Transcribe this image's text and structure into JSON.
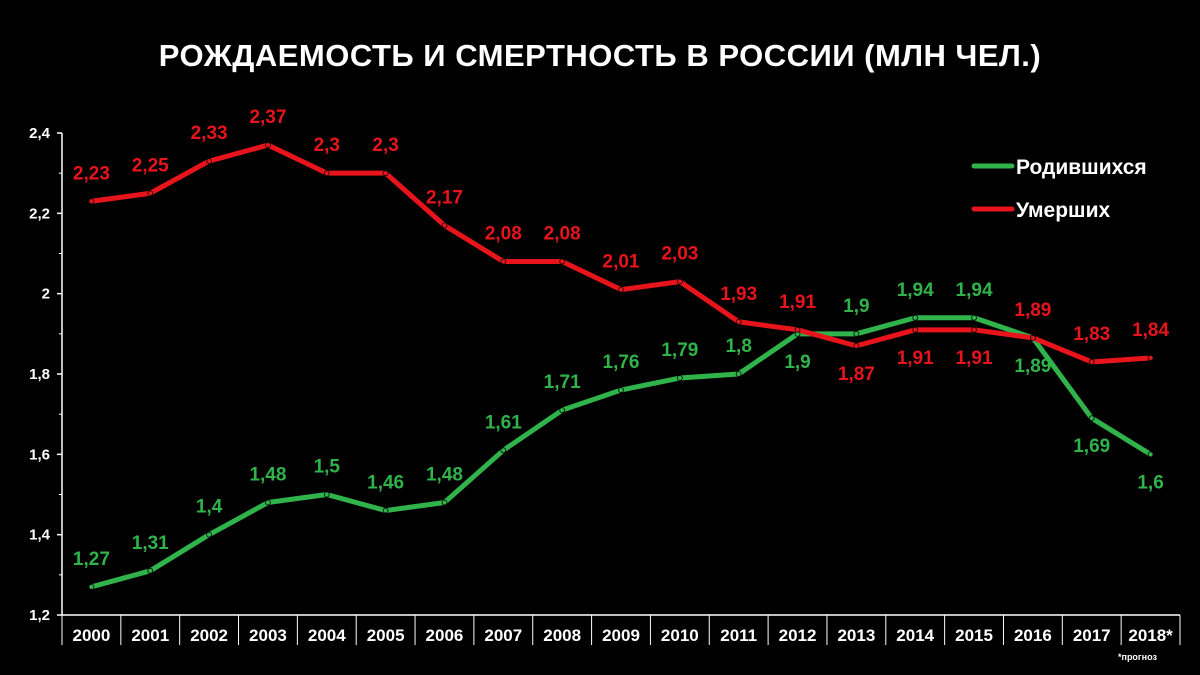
{
  "footnote": "*прогноз",
  "colors": {
    "births": "#2fb34a",
    "deaths": "#e8141b",
    "axis": "#ffffff",
    "background": "#000000"
  },
  "chart_data": {
    "type": "line",
    "title": "РОЖДАЕМОСТЬ И СМЕРТНОСТЬ В РОССИИ (МЛН ЧЕЛ.)",
    "xlabel": "",
    "ylabel": "",
    "categories": [
      "2000",
      "2001",
      "2002",
      "2003",
      "2004",
      "2005",
      "2006",
      "2007",
      "2008",
      "2009",
      "2010",
      "2011",
      "2012",
      "2013",
      "2014",
      "2015",
      "2016",
      "2017",
      "2018*"
    ],
    "ylim": [
      1.2,
      2.4
    ],
    "yticks": [
      1.2,
      1.4,
      1.6,
      1.8,
      2.0,
      2.2,
      2.4
    ],
    "ytick_labels": [
      "1,2",
      "1,4",
      "1,6",
      "1,8",
      "2",
      "2,2",
      "2,4"
    ],
    "grid": false,
    "legend_position": "top-right",
    "series": [
      {
        "name": "Родившихся",
        "color": "#2fb34a",
        "values": [
          1.27,
          1.31,
          1.4,
          1.48,
          1.5,
          1.46,
          1.48,
          1.61,
          1.71,
          1.76,
          1.79,
          1.8,
          1.9,
          1.9,
          1.94,
          1.94,
          1.89,
          1.69,
          1.6
        ],
        "labels": [
          "1,27",
          "1,31",
          "1,4",
          "1,48",
          "1,5",
          "1,46",
          "1,48",
          "1,61",
          "1,71",
          "1,76",
          "1,79",
          "1,8",
          "1,9",
          "1,9",
          "1,94",
          "1,94",
          "1,89",
          "1,69",
          "1,6"
        ]
      },
      {
        "name": "Умерших",
        "color": "#e8141b",
        "values": [
          2.23,
          2.25,
          2.33,
          2.37,
          2.3,
          2.3,
          2.17,
          2.08,
          2.08,
          2.01,
          2.03,
          1.93,
          1.91,
          1.87,
          1.91,
          1.91,
          1.89,
          1.83,
          1.84
        ],
        "labels": [
          "2,23",
          "2,25",
          "2,33",
          "2,37",
          "2,3",
          "2,3",
          "2,17",
          "2,08",
          "2,08",
          "2,01",
          "2,03",
          "1,93",
          "1,91",
          "1,87",
          "1,91",
          "1,91",
          "1,89",
          "1,83",
          "1,84"
        ]
      }
    ]
  }
}
